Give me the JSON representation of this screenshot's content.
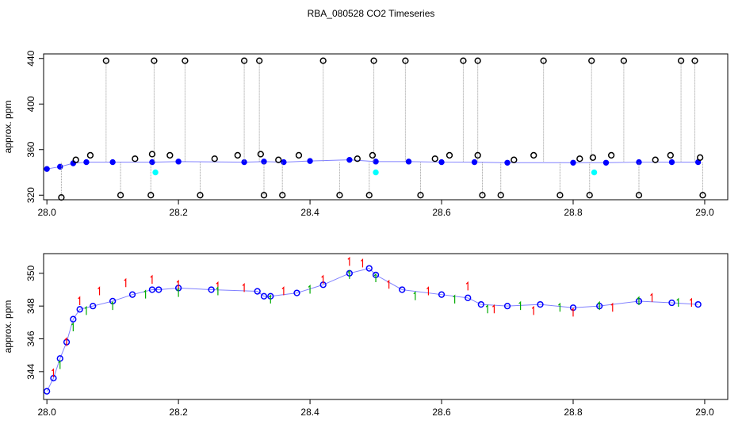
{
  "title": "RBA_080528  CO2 Timeseries",
  "chart_data": [
    {
      "type": "scatter",
      "panel": "top",
      "ylabel": "approx. ppm",
      "xlabel": "",
      "xlim": [
        27.995,
        29.035
      ],
      "ylim": [
        316,
        444
      ],
      "x_ticks": [
        "28.0",
        "28.2",
        "28.4",
        "28.6",
        "28.8",
        "29.0"
      ],
      "y_ticks": [
        "320",
        "360",
        "400",
        "440"
      ],
      "grid": false,
      "series": [
        {
          "name": "baseline",
          "color": "#0000ff",
          "marker": "circle",
          "x": [
            28.0,
            28.02,
            28.04,
            28.06,
            28.1,
            28.16,
            28.2,
            28.3,
            28.33,
            28.36,
            28.4,
            28.46,
            28.5,
            28.55,
            28.6,
            28.65,
            28.7,
            28.8,
            28.85,
            28.9,
            28.95,
            28.99
          ],
          "y": [
            343,
            345,
            348,
            349,
            349,
            349,
            349.5,
            349,
            349.5,
            349,
            350,
            351,
            349.5,
            349.5,
            349,
            349,
            348.5,
            348.5,
            348.5,
            349,
            349,
            349
          ]
        },
        {
          "name": "spikes_high",
          "color": "#000000",
          "marker": "open-circle",
          "x": [
            28.09,
            28.163,
            28.21,
            28.3,
            28.323,
            28.42,
            28.497,
            28.545,
            28.633,
            28.655,
            28.755,
            28.828,
            28.877,
            28.964,
            28.985
          ],
          "y": [
            438,
            438,
            438,
            438,
            438,
            438,
            438,
            438,
            438,
            438,
            438,
            438,
            438,
            438,
            438
          ]
        },
        {
          "name": "spikes_low",
          "color": "#000000",
          "marker": "open-circle",
          "x": [
            28.022,
            28.112,
            28.158,
            28.233,
            28.33,
            28.358,
            28.445,
            28.49,
            28.568,
            28.662,
            28.69,
            28.78,
            28.825,
            28.9,
            28.997
          ],
          "y": [
            318,
            320,
            320,
            320,
            320,
            320,
            320,
            320,
            320,
            320,
            320,
            320,
            320,
            320,
            320
          ]
        },
        {
          "name": "near_points",
          "color": "#000000",
          "marker": "open-circle",
          "x": [
            28.044,
            28.066,
            28.134,
            28.16,
            28.187,
            28.255,
            28.29,
            28.325,
            28.352,
            28.383,
            28.472,
            28.495,
            28.59,
            28.612,
            28.655,
            28.71,
            28.74,
            28.81,
            28.83,
            28.858,
            28.925,
            28.948,
            28.993
          ],
          "y": [
            351,
            355,
            352,
            356,
            355,
            352,
            355,
            356,
            351,
            355,
            352,
            355,
            352,
            355,
            355,
            351,
            355,
            352,
            353,
            355,
            351,
            355,
            353
          ]
        },
        {
          "name": "cyan_outliers",
          "color": "#00ffff",
          "marker": "circle",
          "x": [
            28.165,
            28.5,
            28.832
          ],
          "y": [
            340,
            340,
            340
          ]
        }
      ]
    },
    {
      "type": "scatter",
      "panel": "bottom",
      "ylabel": "approx. ppm",
      "xlabel": "",
      "xlim": [
        27.995,
        29.035
      ],
      "ylim": [
        342.3,
        351.2
      ],
      "x_ticks": [
        "28.0",
        "28.2",
        "28.4",
        "28.6",
        "28.8",
        "29.0"
      ],
      "y_ticks": [
        "344",
        "346",
        "348",
        "350"
      ],
      "grid": false,
      "series": [
        {
          "name": "blue_open",
          "color": "#0000ff",
          "marker": "open-circle",
          "x": [
            28.0,
            28.01,
            28.02,
            28.03,
            28.04,
            28.05,
            28.07,
            28.1,
            28.13,
            28.16,
            28.17,
            28.2,
            28.25,
            28.32,
            28.33,
            28.34,
            28.38,
            28.42,
            28.46,
            28.49,
            28.5,
            28.54,
            28.6,
            28.64,
            28.66,
            28.7,
            28.75,
            28.8,
            28.84,
            28.9,
            28.95,
            28.99
          ],
          "y": [
            342.8,
            343.6,
            344.8,
            345.8,
            347.2,
            347.8,
            348.0,
            348.3,
            348.7,
            349.0,
            349.0,
            349.1,
            349.0,
            348.9,
            348.6,
            348.6,
            348.8,
            349.3,
            350.0,
            350.3,
            349.9,
            349.0,
            348.7,
            348.5,
            348.1,
            348.0,
            348.1,
            347.9,
            348.0,
            348.3,
            348.2,
            348.1
          ]
        },
        {
          "name": "red_ticks",
          "color": "#ff0000",
          "marker": "tick",
          "x": [
            28.01,
            28.03,
            28.05,
            28.08,
            28.12,
            28.16,
            28.2,
            28.26,
            28.3,
            28.36,
            28.42,
            28.46,
            28.48,
            28.52,
            28.58,
            28.64,
            28.68,
            28.74,
            28.8,
            28.86,
            28.92,
            28.98
          ],
          "y": [
            343.9,
            345.8,
            348.3,
            348.9,
            349.4,
            349.6,
            349.3,
            349.2,
            349.1,
            348.9,
            349.6,
            350.7,
            350.6,
            349.3,
            348.9,
            349.2,
            347.8,
            347.7,
            347.6,
            347.9,
            348.5,
            348.2
          ]
        },
        {
          "name": "green_ticks",
          "color": "#00aa00",
          "marker": "tick",
          "x": [
            28.02,
            28.04,
            28.06,
            28.1,
            28.15,
            28.2,
            28.26,
            28.34,
            28.4,
            28.46,
            28.5,
            28.56,
            28.62,
            28.67,
            28.72,
            28.78,
            28.84,
            28.9,
            28.96
          ],
          "y": [
            344.4,
            346.7,
            347.7,
            348.0,
            348.7,
            348.8,
            348.9,
            348.4,
            349.0,
            349.9,
            349.7,
            348.6,
            348.4,
            347.8,
            348.0,
            347.9,
            348.0,
            348.3,
            348.2
          ]
        }
      ]
    }
  ]
}
